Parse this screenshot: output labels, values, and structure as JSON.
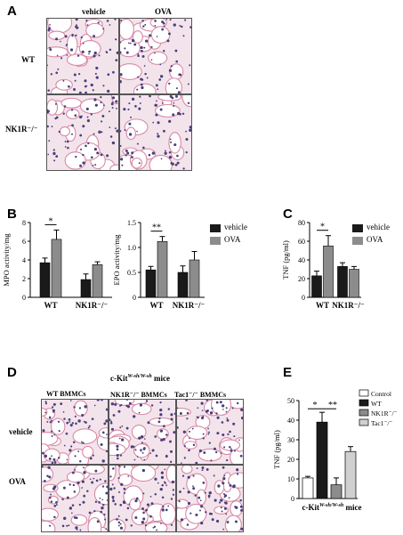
{
  "panels": {
    "A": "A",
    "B": "B",
    "C": "C",
    "D": "D",
    "E": "E"
  },
  "panelA": {
    "col_headers": [
      "vehicle",
      "OVA"
    ],
    "row_headers": [
      "WT",
      "NK1R⁻/⁻"
    ]
  },
  "panelD": {
    "title": "c-Kit",
    "title_sup": "W-sh/W-sh",
    "title_suffix": " mice",
    "col_headers": [
      "WT BMMCs",
      "NK1R⁻/⁻ BMMCs",
      "Tac1⁻/⁻ BMMCs"
    ],
    "row_headers": [
      "vehicle",
      "OVA"
    ]
  },
  "legendBC": [
    "vehicle",
    "OVA"
  ],
  "legendE": [
    "Control",
    "WT",
    "NK1R⁻/⁻",
    "Tac1⁻/⁻"
  ],
  "colors": {
    "black_bar": "#1a1a1a",
    "gray_bar": "#8c8c8c",
    "white_bar": "#ffffff",
    "light_bar": "#d0d0d0",
    "tissue_bg": "#f3e4ec",
    "nuclei": "#4b3f7a",
    "eosin": "#d98aa6"
  },
  "chart_data": [
    {
      "id": "B1",
      "type": "bar",
      "categories": [
        "WT",
        "NK1R⁻/⁻"
      ],
      "ylabel": "MPO activity/mg",
      "ylim": [
        0,
        8
      ],
      "yticks": [
        0,
        2,
        4,
        6,
        8
      ],
      "series": [
        {
          "name": "vehicle",
          "values": [
            3.7,
            1.9
          ],
          "errors": [
            0.5,
            0.6
          ]
        },
        {
          "name": "OVA",
          "values": [
            6.2,
            3.5
          ],
          "errors": [
            1.0,
            0.3
          ]
        }
      ],
      "significance": [
        {
          "label": "*"
        }
      ]
    },
    {
      "id": "B2",
      "type": "bar",
      "categories": [
        "WT",
        "NK1R⁻/⁻"
      ],
      "ylabel": "EPO activity/mg",
      "ylim": [
        0,
        1.5
      ],
      "yticks": [
        0,
        0.5,
        1.0,
        1.5
      ],
      "series": [
        {
          "name": "vehicle",
          "values": [
            0.55,
            0.5
          ],
          "errors": [
            0.07,
            0.13
          ]
        },
        {
          "name": "OVA",
          "values": [
            1.12,
            0.75
          ],
          "errors": [
            0.1,
            0.17
          ]
        }
      ],
      "significance": [
        {
          "label": "**"
        }
      ]
    },
    {
      "id": "C",
      "type": "bar",
      "categories": [
        "WT",
        "NK1R⁻/⁻"
      ],
      "ylabel": "TNF (pg/ml)",
      "ylim": [
        0,
        80
      ],
      "yticks": [
        0,
        20,
        40,
        60,
        80
      ],
      "series": [
        {
          "name": "vehicle",
          "values": [
            23,
            33
          ],
          "errors": [
            5,
            4
          ]
        },
        {
          "name": "OVA",
          "values": [
            55,
            30
          ],
          "errors": [
            11,
            3
          ]
        }
      ],
      "significance": [
        {
          "label": "*"
        }
      ]
    },
    {
      "id": "E",
      "type": "bar",
      "categories": [
        "Control",
        "WT",
        "NK1R⁻/⁻",
        "Tac1⁻/⁻"
      ],
      "xlabel": "c-Kit",
      "xlabel_sup": "W-sh/W-sh",
      "xlabel_suffix": " mice",
      "ylabel": "TNF (pg/ml)",
      "ylim": [
        0,
        50
      ],
      "yticks": [
        0,
        10,
        20,
        30,
        40,
        50
      ],
      "values": [
        10.5,
        39,
        7,
        24
      ],
      "errors": [
        0.8,
        5,
        3.5,
        2.5
      ],
      "significance": [
        {
          "label": "*"
        },
        {
          "label": "**"
        }
      ]
    }
  ]
}
